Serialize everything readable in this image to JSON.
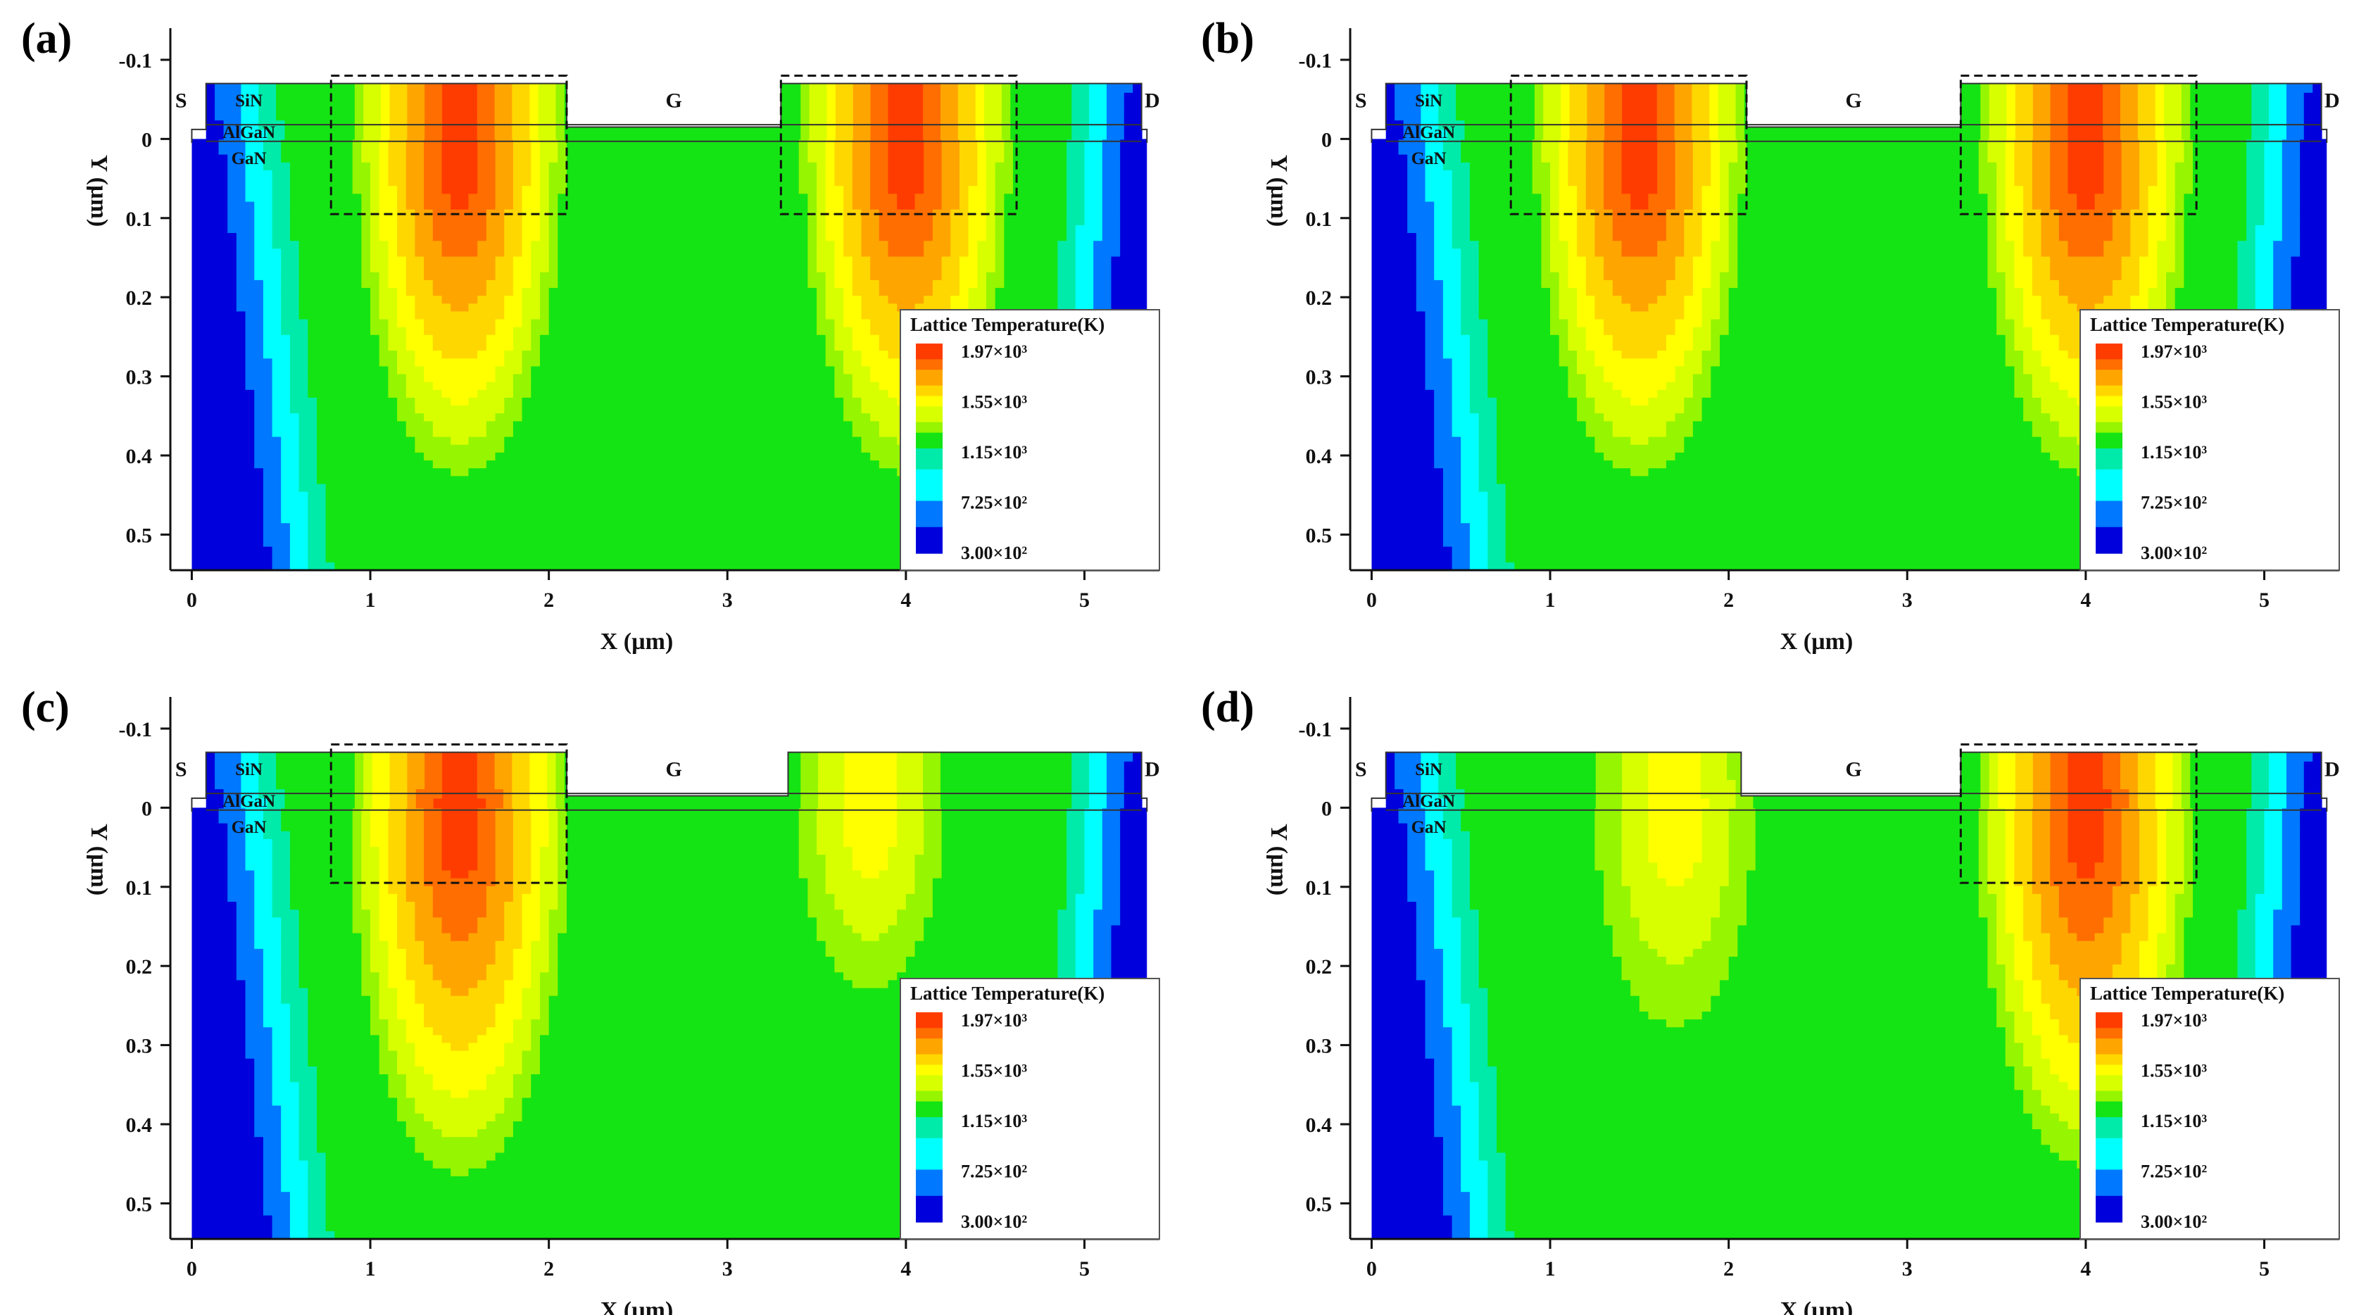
{
  "chart_data": [
    {
      "type": "heatmap",
      "panel_label": "(a)",
      "xlabel": "X (µm)",
      "ylabel": "Y (µm)",
      "xlim": [
        -0.12,
        5.42
      ],
      "ylim": [
        -0.14,
        0.545
      ],
      "x_ticks": [
        "0",
        "1",
        "2",
        "3",
        "4",
        "5"
      ],
      "x_tick_values": [
        0,
        1,
        2,
        3,
        4,
        5
      ],
      "y_ticks": [
        "-0.1",
        "0",
        "0.1",
        "0.2",
        "0.3",
        "0.4",
        "0.5"
      ],
      "y_tick_values": [
        -0.1,
        0,
        0.1,
        0.2,
        0.3,
        0.4,
        0.5
      ],
      "terminals": {
        "source": "S",
        "gate": "G",
        "drain": "D"
      },
      "layers": [
        "SiN",
        "AlGaN",
        "GaN"
      ],
      "legend": {
        "title": "Lattice Temperature(K)",
        "entries": [
          "1.97×10³",
          "1.55×10³",
          "1.15×10³",
          "7.25×10²",
          "3.00×10²"
        ],
        "values": [
          1970,
          1550,
          1150,
          725,
          300
        ]
      },
      "hotspots": [
        {
          "x": 1.5,
          "y": 0.0,
          "peak_K": 1970,
          "depth_um": 0.43
        },
        {
          "x": 4.0,
          "y": 0.0,
          "peak_K": 1970,
          "depth_um": 0.43
        }
      ],
      "dashed_boxes": [
        {
          "x0": 0.78,
          "x1": 2.1,
          "y0": -0.08,
          "y1": 0.095
        },
        {
          "x0": 3.3,
          "x1": 4.62,
          "y0": -0.08,
          "y1": 0.095
        }
      ]
    },
    {
      "type": "heatmap",
      "panel_label": "(b)",
      "xlabel": "X (µm)",
      "ylabel": "Y (µm)",
      "xlim": [
        -0.12,
        5.42
      ],
      "ylim": [
        -0.14,
        0.545
      ],
      "x_ticks": [
        "0",
        "1",
        "2",
        "3",
        "4",
        "5"
      ],
      "x_tick_values": [
        0,
        1,
        2,
        3,
        4,
        5
      ],
      "y_ticks": [
        "-0.1",
        "0",
        "0.1",
        "0.2",
        "0.3",
        "0.4",
        "0.5"
      ],
      "y_tick_values": [
        -0.1,
        0,
        0.1,
        0.2,
        0.3,
        0.4,
        0.5
      ],
      "terminals": {
        "source": "S",
        "gate": "G",
        "drain": "D"
      },
      "layers": [
        "SiN",
        "AlGaN",
        "GaN"
      ],
      "legend": {
        "title": "Lattice Temperature(K)",
        "entries": [
          "1.97×10³",
          "1.55×10³",
          "1.15×10³",
          "7.25×10²",
          "3.00×10²"
        ],
        "values": [
          1970,
          1550,
          1150,
          725,
          300
        ]
      },
      "hotspots": [
        {
          "x": 1.5,
          "y": 0.0,
          "peak_K": 1970,
          "depth_um": 0.43
        },
        {
          "x": 4.0,
          "y": 0.0,
          "peak_K": 1970,
          "depth_um": 0.43
        }
      ],
      "dashed_boxes": [
        {
          "x0": 0.78,
          "x1": 2.1,
          "y0": -0.08,
          "y1": 0.095
        },
        {
          "x0": 3.3,
          "x1": 4.62,
          "y0": -0.08,
          "y1": 0.095
        }
      ]
    },
    {
      "type": "heatmap",
      "panel_label": "(c)",
      "xlabel": "X (µm)",
      "ylabel": "Y (µm)",
      "xlim": [
        -0.12,
        5.42
      ],
      "ylim": [
        -0.14,
        0.545
      ],
      "x_ticks": [
        "0",
        "1",
        "2",
        "3",
        "4",
        "5"
      ],
      "x_tick_values": [
        0,
        1,
        2,
        3,
        4,
        5
      ],
      "y_ticks": [
        "-0.1",
        "0",
        "0.1",
        "0.2",
        "0.3",
        "0.4",
        "0.5"
      ],
      "y_tick_values": [
        -0.1,
        0,
        0.1,
        0.2,
        0.3,
        0.4,
        0.5
      ],
      "terminals": {
        "source": "S",
        "gate": "G",
        "drain": "D"
      },
      "layers": [
        "SiN",
        "AlGaN",
        "GaN"
      ],
      "legend": {
        "title": "Lattice Temperature(K)",
        "entries": [
          "1.97×10³",
          "1.55×10³",
          "1.15×10³",
          "7.25×10²",
          "3.00×10²"
        ],
        "values": [
          1970,
          1550,
          1150,
          725,
          300
        ]
      },
      "hotspots": [
        {
          "x": 1.5,
          "y": 0.0,
          "peak_K": 1970,
          "depth_um": 0.47
        },
        {
          "x": 3.8,
          "y": 0.0,
          "peak_K": 1550,
          "depth_um": 0.26
        }
      ],
      "dashed_boxes": [
        {
          "x0": 0.78,
          "x1": 2.1,
          "y0": -0.08,
          "y1": 0.095
        }
      ]
    },
    {
      "type": "heatmap",
      "panel_label": "(d)",
      "xlabel": "X (µm)",
      "ylabel": "Y (µm)",
      "xlim": [
        -0.12,
        5.42
      ],
      "ylim": [
        -0.14,
        0.545
      ],
      "x_ticks": [
        "0",
        "1",
        "2",
        "3",
        "4",
        "5"
      ],
      "x_tick_values": [
        0,
        1,
        2,
        3,
        4,
        5
      ],
      "y_ticks": [
        "-0.1",
        "0",
        "0.1",
        "0.2",
        "0.3",
        "0.4",
        "0.5"
      ],
      "y_tick_values": [
        -0.1,
        0,
        0.1,
        0.2,
        0.3,
        0.4,
        0.5
      ],
      "terminals": {
        "source": "S",
        "gate": "G",
        "drain": "D"
      },
      "layers": [
        "SiN",
        "AlGaN",
        "GaN"
      ],
      "legend": {
        "title": "Lattice Temperature(K)",
        "entries": [
          "1.97×10³",
          "1.55×10³",
          "1.15×10³",
          "7.25×10²",
          "3.00×10²"
        ],
        "values": [
          1970,
          1550,
          1150,
          725,
          300
        ]
      },
      "hotspots": [
        {
          "x": 1.7,
          "y": 0.0,
          "peak_K": 1550,
          "depth_um": 0.31
        },
        {
          "x": 4.0,
          "y": 0.0,
          "peak_K": 1970,
          "depth_um": 0.46
        }
      ],
      "dashed_boxes": [
        {
          "x0": 3.3,
          "x1": 4.62,
          "y0": -0.08,
          "y1": 0.095
        }
      ]
    }
  ],
  "colors": {
    "background_field": "#12e012",
    "axis": "#111111",
    "scale": [
      "#ff0000",
      "#ff6600",
      "#ffaa00",
      "#ffff00",
      "#c8ff00",
      "#14e614",
      "#00ffff",
      "#0000ff"
    ]
  }
}
